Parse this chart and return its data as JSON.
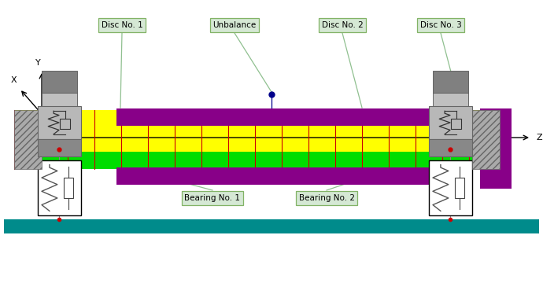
{
  "bg_color": "#ffffff",
  "labels": {
    "disc1": "Disc No. 1",
    "unbalance": "Unbalance",
    "disc2": "Disc No. 2",
    "disc3": "Disc No. 3",
    "bearing1": "Bearing No. 1",
    "bearing2": "Bearing No. 2"
  },
  "label_box_color": "#d5e8d4",
  "label_box_edge": "#82b366",
  "teal_color": "#008B8B",
  "yellow_color": "#ffff00",
  "green_color": "#00dd00",
  "purple_color": "#880088",
  "ann_line_color": "#90c090",
  "grid_color": "#cc0000",
  "blue_dot_color": "#00008B",
  "red_dot_color": "#cc0000"
}
